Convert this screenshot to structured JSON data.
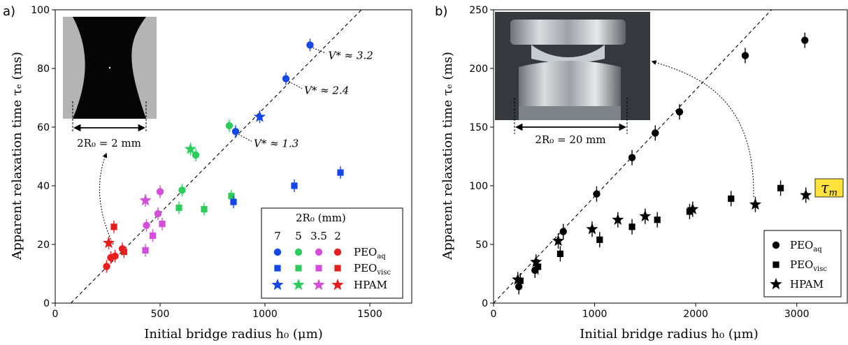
{
  "panels": [
    {
      "label": "a)"
    },
    {
      "label": "b)"
    }
  ],
  "chart_data": [
    {
      "type": "scatter",
      "xlabel": "Initial bridge radius h₀ (μm)",
      "ylabel": "Apparent relaxation time τₑ (ms)",
      "xlim": [
        0,
        1700
      ],
      "ylim": [
        0,
        100
      ],
      "xticks": [
        0,
        500,
        1000,
        1500
      ],
      "yticks": [
        0,
        20,
        40,
        60,
        80,
        100
      ],
      "grid": false,
      "legend_position": "lower-right",
      "legend_title": "2R₀ (mm)",
      "legend_columns": [
        "7",
        "5",
        "3.5",
        "2"
      ],
      "colors": {
        "7": "#1447e6",
        "5": "#2ecc5c",
        "3.5": "#d44fd9",
        "2": "#e81d1d"
      },
      "fit_line": {
        "x": [
          75,
          1460
        ],
        "y": [
          0,
          100
        ],
        "style": "dashed"
      },
      "series": [
        {
          "name": "PEO_aq",
          "marker": "circle",
          "points": [
            {
              "x": 245,
              "y": 12.5,
              "group": "2"
            },
            {
              "x": 265,
              "y": 15.5,
              "group": "2"
            },
            {
              "x": 285,
              "y": 16,
              "group": "2"
            },
            {
              "x": 320,
              "y": 18.5,
              "group": "2"
            },
            {
              "x": 435,
              "y": 26.5,
              "group": "3.5"
            },
            {
              "x": 490,
              "y": 30.5,
              "group": "3.5"
            },
            {
              "x": 500,
              "y": 38,
              "group": "3.5"
            },
            {
              "x": 605,
              "y": 38.5,
              "group": "5"
            },
            {
              "x": 670,
              "y": 50.5,
              "group": "5"
            },
            {
              "x": 830,
              "y": 60.5,
              "group": "5"
            },
            {
              "x": 860,
              "y": 58.5,
              "group": "7"
            },
            {
              "x": 1100,
              "y": 76.5,
              "group": "7"
            },
            {
              "x": 1215,
              "y": 88,
              "group": "7"
            }
          ]
        },
        {
          "name": "PEO_visc",
          "marker": "square",
          "points": [
            {
              "x": 280,
              "y": 26,
              "group": "2"
            },
            {
              "x": 328,
              "y": 17.5,
              "group": "2"
            },
            {
              "x": 430,
              "y": 18,
              "group": "3.5"
            },
            {
              "x": 465,
              "y": 23,
              "group": "3.5"
            },
            {
              "x": 510,
              "y": 27,
              "group": "3.5"
            },
            {
              "x": 590,
              "y": 32.5,
              "group": "5"
            },
            {
              "x": 710,
              "y": 32,
              "group": "5"
            },
            {
              "x": 840,
              "y": 36.5,
              "group": "5"
            },
            {
              "x": 850,
              "y": 34.5,
              "group": "7"
            },
            {
              "x": 1140,
              "y": 40,
              "group": "7"
            },
            {
              "x": 1360,
              "y": 44.5,
              "group": "7"
            }
          ]
        },
        {
          "name": "HPAM",
          "marker": "star",
          "points": [
            {
              "x": 255,
              "y": 20.5,
              "group": "2"
            },
            {
              "x": 430,
              "y": 35,
              "group": "3.5"
            },
            {
              "x": 645,
              "y": 52.5,
              "group": "5"
            },
            {
              "x": 975,
              "y": 63.5,
              "group": "7"
            }
          ]
        }
      ],
      "annotations": [
        {
          "text": "V* ≈ 3.2",
          "x": 1215,
          "y": 88
        },
        {
          "text": "V* ≈ 2.4",
          "x": 1100,
          "y": 76.5
        },
        {
          "text": "V* ≈ 1.3",
          "x": 860,
          "y": 58.5
        }
      ],
      "inset_caption": "2R₀ = 2 mm"
    },
    {
      "type": "scatter",
      "xlabel": "Initial bridge radius h₀ (μm)",
      "ylabel": "Apparent relaxation time τₑ (ms)",
      "xlim": [
        0,
        3500
      ],
      "ylim": [
        0,
        250
      ],
      "xticks": [
        0,
        1000,
        2000,
        3000
      ],
      "yticks": [
        0,
        50,
        100,
        150,
        200,
        250
      ],
      "grid": false,
      "legend_position": "lower-right",
      "fit_line": {
        "x": [
          0,
          2750
        ],
        "y": [
          0,
          250
        ],
        "style": "dashed"
      },
      "series": [
        {
          "name": "PEO_aq",
          "marker": "circle",
          "points": [
            {
              "x": 250,
              "y": 14
            },
            {
              "x": 410,
              "y": 28
            },
            {
              "x": 690,
              "y": 61
            },
            {
              "x": 1020,
              "y": 93
            },
            {
              "x": 1370,
              "y": 124
            },
            {
              "x": 1600,
              "y": 145
            },
            {
              "x": 1840,
              "y": 163
            },
            {
              "x": 2490,
              "y": 211
            },
            {
              "x": 3080,
              "y": 224
            }
          ]
        },
        {
          "name": "PEO_visc",
          "marker": "square",
          "points": [
            {
              "x": 265,
              "y": 19
            },
            {
              "x": 440,
              "y": 31
            },
            {
              "x": 660,
              "y": 42
            },
            {
              "x": 1050,
              "y": 54
            },
            {
              "x": 1370,
              "y": 65
            },
            {
              "x": 1620,
              "y": 71
            },
            {
              "x": 1940,
              "y": 78
            },
            {
              "x": 2350,
              "y": 89
            },
            {
              "x": 2840,
              "y": 98
            }
          ]
        },
        {
          "name": "HPAM",
          "marker": "star",
          "points": [
            {
              "x": 240,
              "y": 20
            },
            {
              "x": 420,
              "y": 35
            },
            {
              "x": 640,
              "y": 53
            },
            {
              "x": 975,
              "y": 63
            },
            {
              "x": 1230,
              "y": 71
            },
            {
              "x": 1500,
              "y": 74
            },
            {
              "x": 1970,
              "y": 80
            },
            {
              "x": 2590,
              "y": 84
            },
            {
              "x": 3090,
              "y": 92
            }
          ]
        }
      ],
      "callout": "τ_m",
      "callout_color": "#ffe23b",
      "inset_caption": "2R₀ = 20 mm"
    }
  ]
}
